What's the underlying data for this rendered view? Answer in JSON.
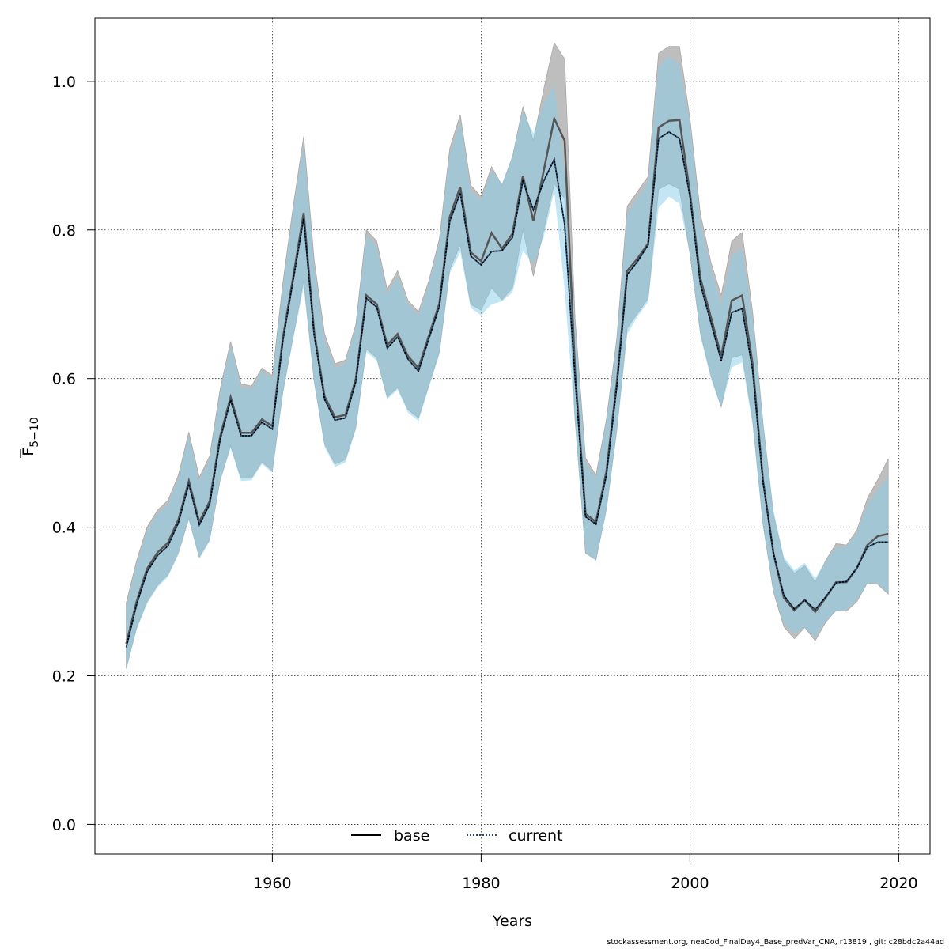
{
  "chart_data": {
    "type": "line",
    "xlabel": "Years",
    "ylabel": {
      "main": "F",
      "sub": "5−10"
    },
    "xlim": [
      1943,
      2023
    ],
    "ylim": [
      -0.04,
      1.085
    ],
    "x_ticks": [
      1960,
      1980,
      2000,
      2020
    ],
    "y_ticks": [
      0.0,
      0.2,
      0.4,
      0.6,
      0.8,
      1.0
    ],
    "y_tick_labels": [
      "0.0",
      "0.2",
      "0.4",
      "0.6",
      "0.8",
      "1.0"
    ],
    "grid": true,
    "legend_position": "bottom",
    "x": [
      1946,
      1947,
      1948,
      1949,
      1950,
      1951,
      1952,
      1953,
      1954,
      1955,
      1956,
      1957,
      1958,
      1959,
      1960,
      1961,
      1962,
      1963,
      1964,
      1965,
      1966,
      1967,
      1968,
      1969,
      1970,
      1971,
      1972,
      1973,
      1974,
      1975,
      1976,
      1977,
      1978,
      1979,
      1980,
      1981,
      1982,
      1983,
      1984,
      1985,
      1986,
      1987,
      1988,
      1989,
      1990,
      1991,
      1992,
      1993,
      1994,
      1995,
      1996,
      1997,
      1998,
      1999,
      2000,
      2001,
      2002,
      2003,
      2004,
      2005,
      2006,
      2007,
      2008,
      2009,
      2010,
      2011,
      2012,
      2013,
      2014,
      2015,
      2016,
      2017,
      2018,
      2019
    ],
    "series": [
      {
        "name": "base",
        "color": "#000000",
        "band_color": "#bebebe",
        "values": [
          0.243,
          0.3,
          0.344,
          0.366,
          0.379,
          0.41,
          0.462,
          0.407,
          0.435,
          0.522,
          0.575,
          0.527,
          0.527,
          0.545,
          0.536,
          0.654,
          0.737,
          0.823,
          0.663,
          0.576,
          0.548,
          0.551,
          0.6,
          0.712,
          0.7,
          0.645,
          0.66,
          0.63,
          0.614,
          0.658,
          0.701,
          0.818,
          0.858,
          0.77,
          0.758,
          0.796,
          0.775,
          0.795,
          0.873,
          0.812,
          0.88,
          0.95,
          0.92,
          0.61,
          0.418,
          0.407,
          0.475,
          0.595,
          0.745,
          0.762,
          0.782,
          0.938,
          0.947,
          0.948,
          0.85,
          0.735,
          0.683,
          0.63,
          0.705,
          0.712,
          0.62,
          0.463,
          0.365,
          0.305,
          0.288,
          0.302,
          0.286,
          0.305,
          0.326,
          0.326,
          0.345,
          0.376,
          0.388,
          0.391
        ],
        "lower": [
          0.21,
          0.265,
          0.3,
          0.322,
          0.336,
          0.366,
          0.412,
          0.36,
          0.384,
          0.464,
          0.51,
          0.466,
          0.466,
          0.488,
          0.476,
          0.582,
          0.657,
          0.732,
          0.598,
          0.512,
          0.485,
          0.491,
          0.535,
          0.64,
          0.628,
          0.575,
          0.588,
          0.558,
          0.547,
          0.592,
          0.636,
          0.747,
          0.78,
          0.7,
          0.692,
          0.722,
          0.706,
          0.722,
          0.8,
          0.738,
          0.8,
          0.862,
          0.842,
          0.545,
          0.365,
          0.356,
          0.425,
          0.532,
          0.668,
          0.688,
          0.708,
          0.855,
          0.862,
          0.855,
          0.768,
          0.662,
          0.605,
          0.562,
          0.628,
          0.632,
          0.545,
          0.405,
          0.313,
          0.266,
          0.25,
          0.265,
          0.247,
          0.272,
          0.288,
          0.287,
          0.3,
          0.325,
          0.323,
          0.31
        ],
        "upper": [
          0.298,
          0.355,
          0.4,
          0.423,
          0.436,
          0.47,
          0.528,
          0.467,
          0.496,
          0.586,
          0.65,
          0.593,
          0.59,
          0.614,
          0.604,
          0.728,
          0.832,
          0.926,
          0.76,
          0.66,
          0.62,
          0.625,
          0.673,
          0.8,
          0.785,
          0.72,
          0.745,
          0.705,
          0.69,
          0.732,
          0.788,
          0.91,
          0.955,
          0.86,
          0.845,
          0.885,
          0.86,
          0.898,
          0.966,
          0.92,
          0.99,
          1.052,
          1.03,
          0.68,
          0.493,
          0.47,
          0.545,
          0.655,
          0.832,
          0.852,
          0.872,
          1.038,
          1.047,
          1.047,
          0.95,
          0.822,
          0.757,
          0.712,
          0.785,
          0.797,
          0.69,
          0.54,
          0.417,
          0.355,
          0.338,
          0.348,
          0.326,
          0.355,
          0.378,
          0.376,
          0.396,
          0.439,
          0.464,
          0.492
        ]
      },
      {
        "name": "current",
        "color": "#1f4e79",
        "band_color": "#87ceeb",
        "values": [
          0.238,
          0.296,
          0.34,
          0.362,
          0.375,
          0.406,
          0.458,
          0.403,
          0.431,
          0.518,
          0.571,
          0.523,
          0.523,
          0.541,
          0.532,
          0.65,
          0.733,
          0.815,
          0.659,
          0.572,
          0.544,
          0.547,
          0.596,
          0.708,
          0.696,
          0.641,
          0.656,
          0.626,
          0.61,
          0.654,
          0.697,
          0.812,
          0.85,
          0.765,
          0.753,
          0.771,
          0.772,
          0.79,
          0.866,
          0.827,
          0.866,
          0.895,
          0.807,
          0.6,
          0.414,
          0.404,
          0.47,
          0.59,
          0.74,
          0.758,
          0.78,
          0.923,
          0.932,
          0.923,
          0.845,
          0.727,
          0.676,
          0.624,
          0.689,
          0.694,
          0.612,
          0.461,
          0.365,
          0.308,
          0.29,
          0.302,
          0.289,
          0.306,
          0.325,
          0.327,
          0.345,
          0.373,
          0.38,
          0.38
        ],
        "lower": [
          0.208,
          0.262,
          0.297,
          0.319,
          0.333,
          0.363,
          0.409,
          0.357,
          0.381,
          0.461,
          0.506,
          0.462,
          0.463,
          0.485,
          0.473,
          0.578,
          0.653,
          0.723,
          0.593,
          0.508,
          0.481,
          0.487,
          0.531,
          0.636,
          0.624,
          0.572,
          0.585,
          0.554,
          0.543,
          0.588,
          0.632,
          0.742,
          0.77,
          0.695,
          0.685,
          0.7,
          0.704,
          0.716,
          0.772,
          0.754,
          0.79,
          0.852,
          0.72,
          0.537,
          0.365,
          0.355,
          0.42,
          0.526,
          0.66,
          0.684,
          0.703,
          0.83,
          0.845,
          0.835,
          0.768,
          0.657,
          0.6,
          0.56,
          0.615,
          0.622,
          0.538,
          0.4,
          0.315,
          0.27,
          0.257,
          0.265,
          0.252,
          0.273,
          0.287,
          0.288,
          0.302,
          0.324,
          0.325,
          0.311
        ],
        "upper": [
          0.292,
          0.35,
          0.395,
          0.418,
          0.43,
          0.465,
          0.523,
          0.462,
          0.491,
          0.581,
          0.645,
          0.588,
          0.586,
          0.61,
          0.6,
          0.722,
          0.826,
          0.915,
          0.752,
          0.653,
          0.614,
          0.62,
          0.668,
          0.793,
          0.778,
          0.713,
          0.738,
          0.7,
          0.685,
          0.727,
          0.783,
          0.902,
          0.946,
          0.853,
          0.84,
          0.88,
          0.862,
          0.9,
          0.96,
          0.93,
          0.97,
          0.995,
          0.88,
          0.672,
          0.487,
          0.466,
          0.541,
          0.65,
          0.823,
          0.843,
          0.865,
          1.02,
          1.034,
          1.022,
          0.945,
          0.812,
          0.748,
          0.7,
          0.765,
          0.775,
          0.68,
          0.543,
          0.423,
          0.36,
          0.342,
          0.352,
          0.331,
          0.354,
          0.372,
          0.374,
          0.392,
          0.43,
          0.45,
          0.468
        ]
      }
    ]
  },
  "footer": "stockassessment.org, neaCod_FinalDay4_Base_predVar_CNA, r13819 , git: c28bdc2a44ad"
}
